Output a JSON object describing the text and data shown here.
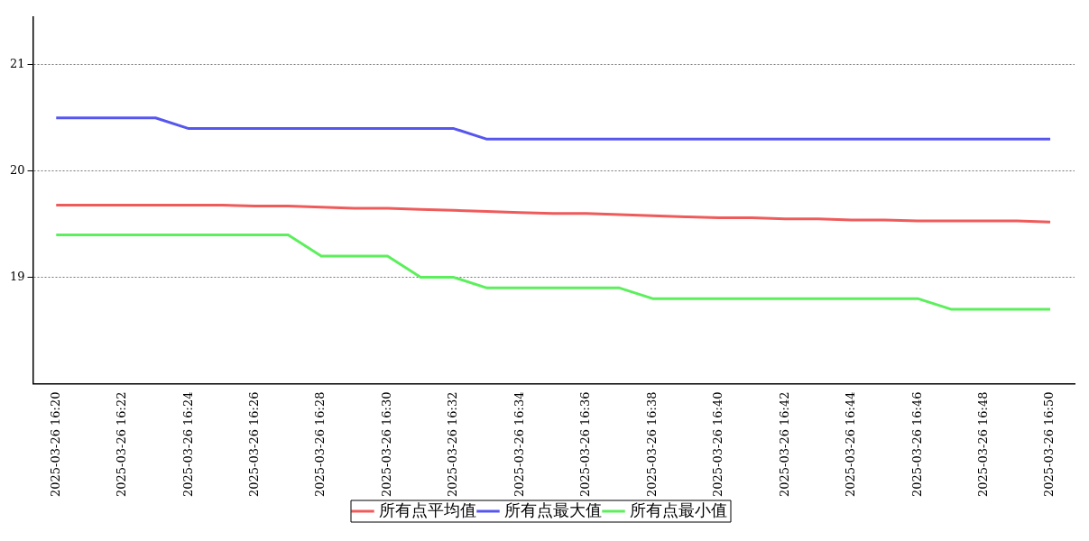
{
  "chart_data": {
    "type": "line",
    "x": [
      "2025-03-26T16:20",
      "2025-03-26T16:21",
      "2025-03-26T16:22",
      "2025-03-26T16:23",
      "2025-03-26T16:24",
      "2025-03-26T16:25",
      "2025-03-26T16:26",
      "2025-03-26T16:27",
      "2025-03-26T16:28",
      "2025-03-26T16:29",
      "2025-03-26T16:30",
      "2025-03-26T16:31",
      "2025-03-26T16:32",
      "2025-03-26T16:33",
      "2025-03-26T16:34",
      "2025-03-26T16:35",
      "2025-03-26T16:36",
      "2025-03-26T16:37",
      "2025-03-26T16:38",
      "2025-03-26T16:39",
      "2025-03-26T16:40",
      "2025-03-26T16:41",
      "2025-03-26T16:42",
      "2025-03-26T16:43",
      "2025-03-26T16:44",
      "2025-03-26T16:45",
      "2025-03-26T16:46",
      "2025-03-26T16:47",
      "2025-03-26T16:48",
      "2025-03-26T16:49",
      "2025-03-26T16:50"
    ],
    "series": [
      {
        "name": "所有点平均值",
        "color": "#ef5b5b",
        "values": [
          19.68,
          19.68,
          19.68,
          19.68,
          19.68,
          19.68,
          19.67,
          19.67,
          19.66,
          19.65,
          19.65,
          19.64,
          19.63,
          19.62,
          19.61,
          19.6,
          19.6,
          19.59,
          19.58,
          19.57,
          19.56,
          19.56,
          19.55,
          19.55,
          19.54,
          19.54,
          19.53,
          19.53,
          19.53,
          19.53,
          19.52
        ]
      },
      {
        "name": "所有点最大值",
        "color": "#5656ef",
        "values": [
          20.5,
          20.5,
          20.5,
          20.5,
          20.4,
          20.4,
          20.4,
          20.4,
          20.4,
          20.4,
          20.4,
          20.4,
          20.4,
          20.3,
          20.3,
          20.3,
          20.3,
          20.3,
          20.3,
          20.3,
          20.3,
          20.3,
          20.3,
          20.3,
          20.3,
          20.3,
          20.3,
          20.3,
          20.3,
          20.3,
          20.3
        ]
      },
      {
        "name": "所有点最小值",
        "color": "#5cef5c",
        "values": [
          19.4,
          19.4,
          19.4,
          19.4,
          19.4,
          19.4,
          19.4,
          19.4,
          19.2,
          19.2,
          19.2,
          19.0,
          19.0,
          18.9,
          18.9,
          18.9,
          18.9,
          18.9,
          18.8,
          18.8,
          18.8,
          18.8,
          18.8,
          18.8,
          18.8,
          18.8,
          18.8,
          18.7,
          18.7,
          18.7,
          18.7
        ]
      }
    ],
    "xlim": [
      "2025-03-26T16:19:18",
      "2025-03-26T16:50:44"
    ],
    "xticks": [
      {
        "value": "2025-03-26T16:20",
        "label": "2025-03-26 16:20"
      },
      {
        "value": "2025-03-26T16:22",
        "label": "2025-03-26 16:22"
      },
      {
        "value": "2025-03-26T16:24",
        "label": "2025-03-26 16:24"
      },
      {
        "value": "2025-03-26T16:26",
        "label": "2025-03-26 16:26"
      },
      {
        "value": "2025-03-26T16:28",
        "label": "2025-03-26 16:28"
      },
      {
        "value": "2025-03-26T16:30",
        "label": "2025-03-26 16:30"
      },
      {
        "value": "2025-03-26T16:32",
        "label": "2025-03-26 16:32"
      },
      {
        "value": "2025-03-26T16:34",
        "label": "2025-03-26 16:34"
      },
      {
        "value": "2025-03-26T16:36",
        "label": "2025-03-26 16:36"
      },
      {
        "value": "2025-03-26T16:38",
        "label": "2025-03-26 16:38"
      },
      {
        "value": "2025-03-26T16:40",
        "label": "2025-03-26 16:40"
      },
      {
        "value": "2025-03-26T16:42",
        "label": "2025-03-26 16:42"
      },
      {
        "value": "2025-03-26T16:44",
        "label": "2025-03-26 16:44"
      },
      {
        "value": "2025-03-26T16:46",
        "label": "2025-03-26 16:46"
      },
      {
        "value": "2025-03-26T16:48",
        "label": "2025-03-26 16:48"
      },
      {
        "value": "2025-03-26T16:50",
        "label": "2025-03-26 16:50"
      }
    ],
    "ylim": [
      18,
      21.45
    ],
    "yticks": [
      19,
      20,
      21
    ],
    "grid": "y",
    "legend": "bottom",
    "marker": "none",
    "line_style": "solid"
  }
}
